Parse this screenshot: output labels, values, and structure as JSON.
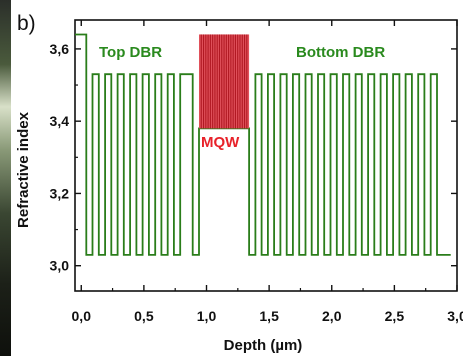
{
  "panel_label": "b)",
  "colors": {
    "dbr_line": "#2a7d1a",
    "mqw_fill": "#e0505a",
    "mqw_line": "#b01822",
    "axis": "#111111"
  },
  "chart_data": {
    "type": "line",
    "title": "",
    "xlabel": "Depth (µm)",
    "ylabel": "Refractive index",
    "xlim": [
      -0.05,
      3.0
    ],
    "ylim": [
      2.93,
      3.68
    ],
    "x_ticks": [
      0.0,
      0.5,
      1.0,
      1.5,
      2.0,
      2.5,
      3.0
    ],
    "x_tick_labels": [
      "0,0",
      "0,5",
      "1,0",
      "1,5",
      "2,0",
      "2,5",
      "3,0"
    ],
    "y_ticks": [
      3.0,
      3.2,
      3.4,
      3.6
    ],
    "y_tick_labels": [
      "3,0",
      "3,2",
      "3,4",
      "3,6"
    ],
    "grid": false,
    "annotations": [
      {
        "text": "Top DBR",
        "x": 0.24,
        "y": 3.57,
        "color": "#2a8a1e"
      },
      {
        "text": "Bottom DBR",
        "x": 2.05,
        "y": 3.57,
        "color": "#2a8a1e"
      },
      {
        "text": "MQW",
        "x": 1.15,
        "y": 3.35,
        "color": "#e8222a"
      }
    ],
    "series": [
      {
        "role": "refractive index profile",
        "n_low": 3.03,
        "n_high": 3.53,
        "n_cap": 3.64,
        "n_spacer": 3.38,
        "x": [
          -0.05,
          0.04,
          0.04,
          0.09,
          0.09,
          0.14,
          0.14,
          0.19,
          0.19,
          0.24,
          0.24,
          0.29,
          0.29,
          0.34,
          0.34,
          0.39,
          0.39,
          0.44,
          0.44,
          0.49,
          0.49,
          0.54,
          0.54,
          0.59,
          0.59,
          0.64,
          0.64,
          0.69,
          0.69,
          0.74,
          0.74,
          0.79,
          0.79,
          0.89,
          0.89,
          0.94,
          0.94,
          1.34,
          1.34,
          1.39,
          1.39,
          1.44,
          1.44,
          1.49,
          1.49,
          1.54,
          1.54,
          1.59,
          1.59,
          1.64,
          1.64,
          1.69,
          1.69,
          1.74,
          1.74,
          1.79,
          1.79,
          1.84,
          1.84,
          1.89,
          1.89,
          1.94,
          1.94,
          1.99,
          1.99,
          2.04,
          2.04,
          2.09,
          2.09,
          2.14,
          2.14,
          2.19,
          2.19,
          2.24,
          2.24,
          2.29,
          2.29,
          2.34,
          2.34,
          2.39,
          2.39,
          2.44,
          2.44,
          2.49,
          2.49,
          2.54,
          2.54,
          2.59,
          2.59,
          2.64,
          2.64,
          2.69,
          2.69,
          2.74,
          2.74,
          2.79,
          2.79,
          2.84,
          2.84,
          2.95
        ],
        "y": [
          3.64,
          3.64,
          3.03,
          3.03,
          3.53,
          3.53,
          3.03,
          3.03,
          3.53,
          3.53,
          3.03,
          3.03,
          3.53,
          3.53,
          3.03,
          3.03,
          3.53,
          3.53,
          3.03,
          3.03,
          3.53,
          3.53,
          3.03,
          3.03,
          3.53,
          3.53,
          3.03,
          3.03,
          3.53,
          3.53,
          3.03,
          3.03,
          3.53,
          3.53,
          3.03,
          3.03,
          3.38,
          3.38,
          3.03,
          3.03,
          3.53,
          3.53,
          3.03,
          3.03,
          3.53,
          3.53,
          3.03,
          3.03,
          3.53,
          3.53,
          3.03,
          3.03,
          3.53,
          3.53,
          3.03,
          3.03,
          3.53,
          3.53,
          3.03,
          3.03,
          3.53,
          3.53,
          3.03,
          3.03,
          3.53,
          3.53,
          3.03,
          3.03,
          3.53,
          3.53,
          3.03,
          3.03,
          3.53,
          3.53,
          3.03,
          3.03,
          3.53,
          3.53,
          3.03,
          3.03,
          3.53,
          3.53,
          3.03,
          3.03,
          3.53,
          3.53,
          3.03,
          3.03,
          3.53,
          3.53,
          3.03,
          3.03,
          3.53,
          3.53,
          3.03,
          3.03,
          3.53,
          3.53,
          3.03,
          3.03
        ]
      }
    ],
    "mqw_region": {
      "x_start": 0.94,
      "x_end": 1.34,
      "y_bottom": 3.38,
      "y_top": 3.64,
      "n_wells": 11
    }
  }
}
